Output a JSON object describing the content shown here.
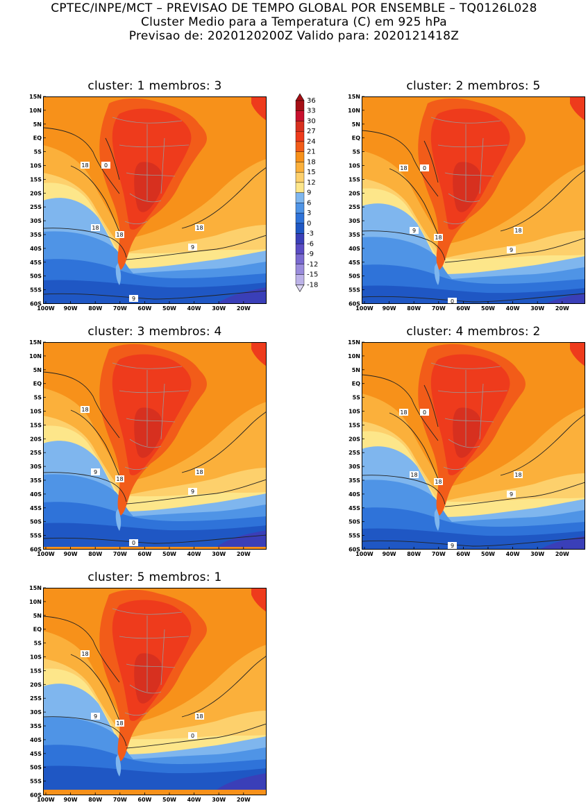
{
  "header": {
    "line1": "CPTEC/INPE/MCT – PREVISAO DE TEMPO GLOBAL POR ENSEMBLE – TQ0126L028",
    "line2": "Cluster Medio para a Temperatura (C) em 925 hPa",
    "line3": "Previsao de: 2020120200Z   Valido para: 2020121418Z"
  },
  "axes": {
    "lat_labels": [
      "15N",
      "10N",
      "5N",
      "EQ",
      "5S",
      "10S",
      "15S",
      "20S",
      "25S",
      "30S",
      "35S",
      "40S",
      "45S",
      "50S",
      "55S",
      "60S"
    ],
    "lon_labels": [
      "100W",
      "90W",
      "80W",
      "70W",
      "60W",
      "50W",
      "40W",
      "30W",
      "20W"
    ]
  },
  "colorbar": {
    "labels": [
      "36",
      "33",
      "30",
      "27",
      "24",
      "21",
      "18",
      "15",
      "12",
      "9",
      "6",
      "3",
      "0",
      "-3",
      "-6",
      "-9",
      "-12",
      "-15",
      "-18"
    ],
    "colors": [
      "#a50f15",
      "#c8102e",
      "#d7301f",
      "#ee3b1c",
      "#f25c19",
      "#f7911a",
      "#fbb03b",
      "#fdd06c",
      "#fde68a",
      "#7fb6ee",
      "#4f94e6",
      "#2f73d9",
      "#1f57c4",
      "#3a3fb8",
      "#5a4cc4",
      "#7a6ad0",
      "#9a8cdc",
      "#bcb2e8",
      "#ded8f4"
    ]
  },
  "panels": [
    {
      "title": "cluster: 1   membros: 3",
      "contours": [
        {
          "label": "18",
          "v": 18
        },
        {
          "label": "18",
          "v": 18
        },
        {
          "label": "18",
          "v": 18
        },
        {
          "label": "18",
          "v": 18
        },
        {
          "label": "9",
          "v": 9
        },
        {
          "label": "9",
          "v": 9
        },
        {
          "label": "0",
          "v": 0
        }
      ]
    },
    {
      "title": "cluster: 2   membros: 5",
      "contours": [
        {
          "label": "18",
          "v": 18
        },
        {
          "label": "18",
          "v": 18
        },
        {
          "label": "18",
          "v": 18
        },
        {
          "label": "9",
          "v": 9
        },
        {
          "label": "9",
          "v": 9
        },
        {
          "label": "0",
          "v": 0
        },
        {
          "label": "0",
          "v": 0
        }
      ]
    },
    {
      "title": "cluster: 3   membros: 4",
      "contours": [
        {
          "label": "18",
          "v": 18
        },
        {
          "label": "18",
          "v": 18
        },
        {
          "label": "18",
          "v": 18
        },
        {
          "label": "9",
          "v": 9
        },
        {
          "label": "9",
          "v": 9
        },
        {
          "label": "0",
          "v": 0
        }
      ]
    },
    {
      "title": "cluster: 4   membros: 2",
      "contours": [
        {
          "label": "18",
          "v": 18
        },
        {
          "label": "18",
          "v": 18
        },
        {
          "label": "18",
          "v": 18
        },
        {
          "label": "18",
          "v": 18
        },
        {
          "label": "9",
          "v": 9
        },
        {
          "label": "9",
          "v": 9
        },
        {
          "label": "0",
          "v": 0
        }
      ]
    },
    {
      "title": "cluster: 5   membros: 1",
      "contours": [
        {
          "label": "18",
          "v": 18
        },
        {
          "label": "18",
          "v": 18
        },
        {
          "label": "18",
          "v": 18
        },
        {
          "label": "9",
          "v": 9
        },
        {
          "label": "0",
          "v": 0
        }
      ]
    }
  ]
}
